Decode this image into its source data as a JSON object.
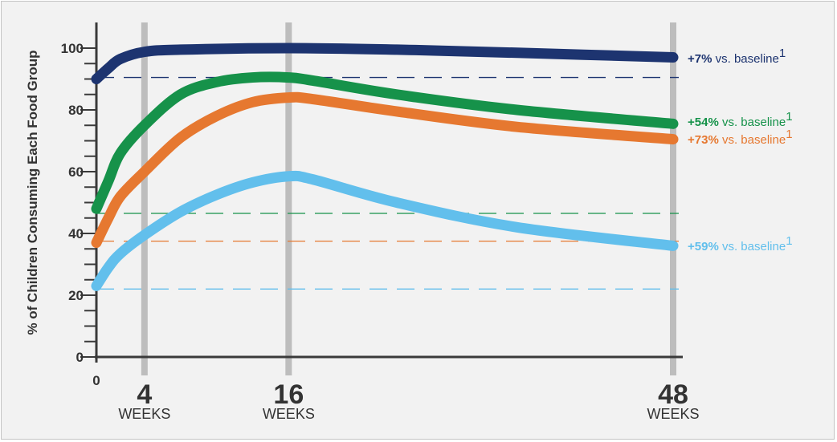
{
  "chart_data": {
    "type": "line",
    "ylabel": "% of Children Consuming Each Food Group",
    "xlabel": "",
    "ylim": [
      0,
      100
    ],
    "yticks": [
      0,
      20,
      40,
      60,
      80,
      100
    ],
    "x_zero_label": "0",
    "x_markers": [
      {
        "value": 4,
        "number": "4",
        "unit": "WEEKS"
      },
      {
        "value": 16,
        "number": "16",
        "unit": "WEEKS"
      },
      {
        "value": 48,
        "number": "48",
        "unit": "WEEKS"
      }
    ],
    "xlim": [
      0,
      48
    ],
    "grid": false,
    "series": [
      {
        "color": "#1d3470",
        "baseline": 90.5,
        "points": [
          [
            0,
            90
          ],
          [
            1,
            93.5
          ],
          [
            2,
            96.5
          ],
          [
            4,
            98.8
          ],
          [
            7,
            99.5
          ],
          [
            16,
            100
          ],
          [
            25,
            99.5
          ],
          [
            35,
            98.5
          ],
          [
            48,
            97
          ]
        ],
        "annotation": {
          "pct": "+7%",
          "rest": " vs. baseline",
          "sup": "1"
        }
      },
      {
        "color": "#16924a",
        "baseline": 46.5,
        "points": [
          [
            0,
            48
          ],
          [
            1,
            57
          ],
          [
            2,
            66
          ],
          [
            4,
            75
          ],
          [
            7,
            85
          ],
          [
            10,
            89
          ],
          [
            13,
            90.5
          ],
          [
            16,
            90.5
          ],
          [
            18,
            89.5
          ],
          [
            25,
            85
          ],
          [
            35,
            80
          ],
          [
            48,
            75.5
          ]
        ],
        "annotation": {
          "pct": "+54%",
          "rest": " vs. baseline",
          "sup": "1"
        }
      },
      {
        "color": "#e67830",
        "baseline": 37.5,
        "points": [
          [
            0,
            37
          ],
          [
            1,
            45
          ],
          [
            2,
            52
          ],
          [
            4,
            60
          ],
          [
            7,
            71
          ],
          [
            10,
            78
          ],
          [
            13,
            82.5
          ],
          [
            16,
            84
          ],
          [
            18,
            83.5
          ],
          [
            25,
            79.5
          ],
          [
            35,
            74.5
          ],
          [
            48,
            70.5
          ]
        ],
        "annotation": {
          "pct": "+73%",
          "rest": " vs. baseline",
          "sup": "1"
        }
      },
      {
        "color": "#62bfec",
        "baseline": 22,
        "points": [
          [
            0,
            23
          ],
          [
            1,
            29
          ],
          [
            2,
            33.5
          ],
          [
            4,
            39.5
          ],
          [
            7,
            47
          ],
          [
            10,
            52.5
          ],
          [
            13,
            56.5
          ],
          [
            16,
            58.5
          ],
          [
            18,
            57.5
          ],
          [
            25,
            50
          ],
          [
            35,
            42
          ],
          [
            48,
            36
          ]
        ],
        "annotation": {
          "pct": "+59%",
          "rest": " vs. baseline",
          "sup": "1"
        }
      }
    ]
  }
}
